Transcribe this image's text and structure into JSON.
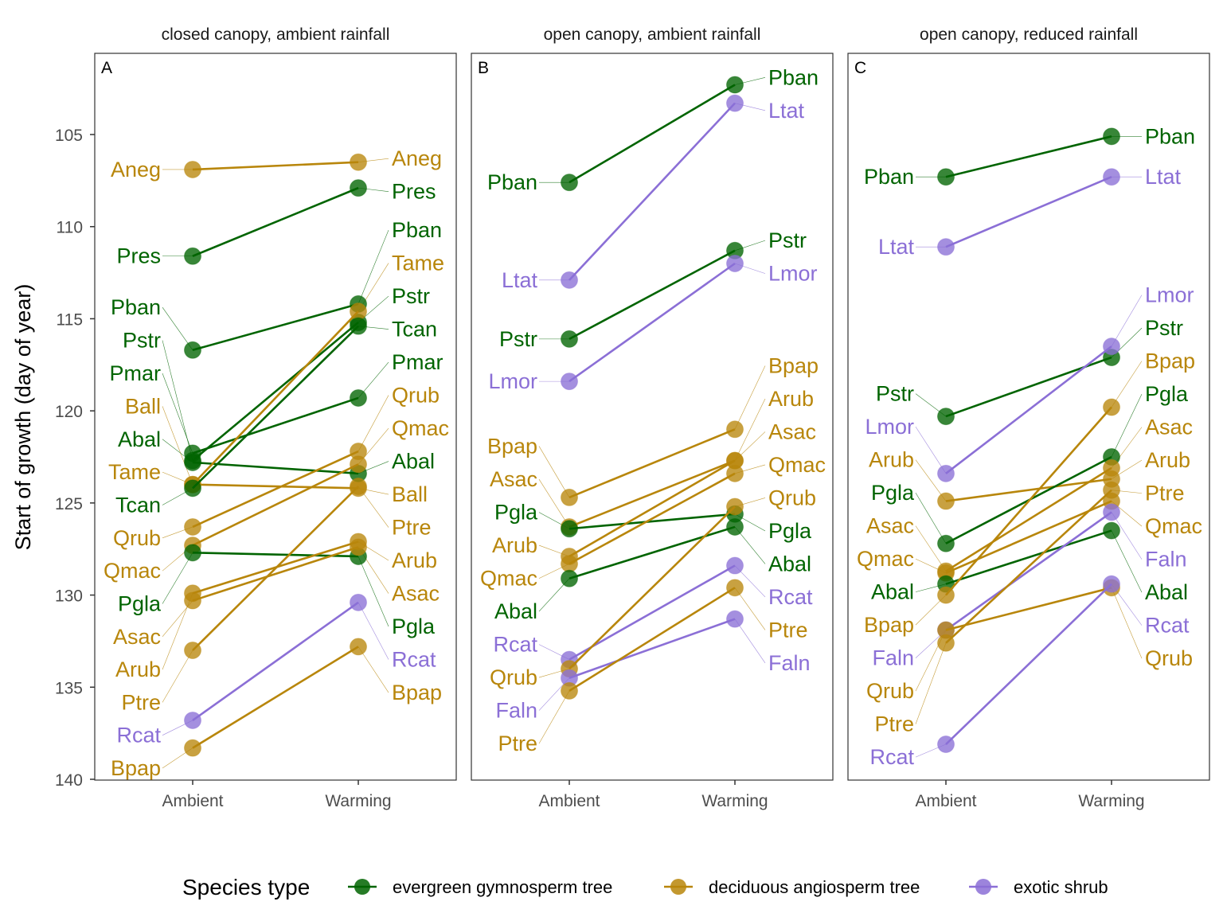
{
  "chart_data": {
    "type": "line",
    "ylabel": "Start of growth (day of year)",
    "y_reversed": true,
    "ylim": [
      140,
      101.5
    ],
    "yticks": [
      105,
      110,
      115,
      120,
      125,
      130,
      135,
      140
    ],
    "categories": [
      "Ambient",
      "Warming"
    ],
    "grid": false,
    "legend": {
      "title": "Species type",
      "placement": "bottom",
      "entries": [
        {
          "key": "evergreen",
          "label": "evergreen gymnosperm tree",
          "color": "#006400"
        },
        {
          "key": "deciduous",
          "label": "deciduous angiosperm tree",
          "color": "#B8860B"
        },
        {
          "key": "exotic",
          "label": "exotic shrub",
          "color": "#8B6FD6"
        }
      ]
    },
    "panels": [
      {
        "tag": "A",
        "title": "closed canopy, ambient rainfall",
        "series": [
          {
            "name": "Aneg",
            "type": "deciduous",
            "values": [
              106.9,
              106.5
            ]
          },
          {
            "name": "Pres",
            "type": "evergreen",
            "values": [
              111.6,
              107.9
            ]
          },
          {
            "name": "Pban",
            "type": "evergreen",
            "values": [
              116.7,
              114.2
            ]
          },
          {
            "name": "Pstr",
            "type": "evergreen",
            "values": [
              122.7,
              115.2
            ]
          },
          {
            "name": "Pmar",
            "type": "evergreen",
            "values": [
              122.3,
              119.3
            ]
          },
          {
            "name": "Ball",
            "type": "deciduous",
            "values": [
              124.0,
              124.2
            ]
          },
          {
            "name": "Abal",
            "type": "evergreen",
            "values": [
              122.8,
              123.4
            ]
          },
          {
            "name": "Tame",
            "type": "deciduous",
            "values": [
              124.0,
              114.6
            ]
          },
          {
            "name": "Tcan",
            "type": "evergreen",
            "values": [
              124.2,
              115.4
            ]
          },
          {
            "name": "Qrub",
            "type": "deciduous",
            "values": [
              126.3,
              122.2
            ]
          },
          {
            "name": "Qmac",
            "type": "deciduous",
            "values": [
              127.3,
              122.9
            ]
          },
          {
            "name": "Pgla",
            "type": "evergreen",
            "values": [
              127.7,
              127.9
            ]
          },
          {
            "name": "Asac",
            "type": "deciduous",
            "values": [
              130.3,
              127.4
            ]
          },
          {
            "name": "Arub",
            "type": "deciduous",
            "values": [
              129.9,
              127.1
            ]
          },
          {
            "name": "Ptre",
            "type": "deciduous",
            "values": [
              133.0,
              124.1
            ]
          },
          {
            "name": "Rcat",
            "type": "exotic",
            "values": [
              136.8,
              130.4
            ]
          },
          {
            "name": "Bpap",
            "type": "deciduous",
            "values": [
              138.3,
              132.8
            ]
          }
        ],
        "left_label_order": [
          "Aneg",
          "Pres",
          "Pban",
          "Pstr",
          "Pmar",
          "Ball",
          "Abal",
          "Tame",
          "Tcan",
          "Qrub",
          "Qmac",
          "Pgla",
          "Asac",
          "Arub",
          "Ptre",
          "Rcat",
          "Bpap"
        ],
        "right_label_order": [
          "Aneg",
          "Pres",
          "Pban",
          "Tame",
          "Pstr",
          "Tcan",
          "Pmar",
          "Qrub",
          "Qmac",
          "Abal",
          "Ball",
          "Ptre",
          "Arub",
          "Asac",
          "Pgla",
          "Rcat",
          "Bpap"
        ]
      },
      {
        "tag": "B",
        "title": "open canopy, ambient rainfall",
        "series": [
          {
            "name": "Pban",
            "type": "evergreen",
            "values": [
              107.6,
              102.3
            ]
          },
          {
            "name": "Ltat",
            "type": "exotic",
            "values": [
              112.9,
              103.3
            ]
          },
          {
            "name": "Pstr",
            "type": "evergreen",
            "values": [
              116.1,
              111.3
            ]
          },
          {
            "name": "Lmor",
            "type": "exotic",
            "values": [
              118.4,
              112.0
            ]
          },
          {
            "name": "Bpap",
            "type": "deciduous",
            "values": [
              124.7,
              121.0
            ]
          },
          {
            "name": "Asac",
            "type": "deciduous",
            "values": [
              126.3,
              122.7
            ]
          },
          {
            "name": "Pgla",
            "type": "evergreen",
            "values": [
              126.4,
              125.6
            ]
          },
          {
            "name": "Arub",
            "type": "deciduous",
            "values": [
              127.9,
              122.7
            ]
          },
          {
            "name": "Qmac",
            "type": "deciduous",
            "values": [
              128.3,
              123.4
            ]
          },
          {
            "name": "Abal",
            "type": "evergreen",
            "values": [
              129.1,
              126.3
            ]
          },
          {
            "name": "Rcat",
            "type": "exotic",
            "values": [
              133.5,
              128.4
            ]
          },
          {
            "name": "Qrub",
            "type": "deciduous",
            "values": [
              134.0,
              125.2
            ]
          },
          {
            "name": "Faln",
            "type": "exotic",
            "values": [
              134.5,
              131.3
            ]
          },
          {
            "name": "Ptre",
            "type": "deciduous",
            "values": [
              135.2,
              129.6
            ]
          }
        ],
        "left_label_order": [
          "Pban",
          "Ltat",
          "Pstr",
          "Lmor",
          "Bpap",
          "Asac",
          "Pgla",
          "Arub",
          "Qmac",
          "Abal",
          "Rcat",
          "Qrub",
          "Faln",
          "Ptre"
        ],
        "right_label_order": [
          "Pban",
          "Ltat",
          "Pstr",
          "Lmor",
          "Bpap",
          "Arub",
          "Asac",
          "Qmac",
          "Qrub",
          "Pgla",
          "Abal",
          "Rcat",
          "Ptre",
          "Faln"
        ]
      },
      {
        "tag": "C",
        "title": "open canopy, reduced rainfall",
        "series": [
          {
            "name": "Pban",
            "type": "evergreen",
            "values": [
              107.3,
              105.1
            ]
          },
          {
            "name": "Ltat",
            "type": "exotic",
            "values": [
              111.1,
              107.3
            ]
          },
          {
            "name": "Pstr",
            "type": "evergreen",
            "values": [
              120.3,
              117.1
            ]
          },
          {
            "name": "Lmor",
            "type": "exotic",
            "values": [
              123.4,
              116.5
            ]
          },
          {
            "name": "Arub",
            "type": "deciduous",
            "values": [
              124.9,
              123.7
            ]
          },
          {
            "name": "Pgla",
            "type": "evergreen",
            "values": [
              127.2,
              122.5
            ]
          },
          {
            "name": "Asac",
            "type": "deciduous",
            "values": [
              128.7,
              123.1
            ]
          },
          {
            "name": "Qmac",
            "type": "deciduous",
            "values": [
              128.8,
              124.9
            ]
          },
          {
            "name": "Abal",
            "type": "evergreen",
            "values": [
              129.4,
              126.5
            ]
          },
          {
            "name": "Bpap",
            "type": "deciduous",
            "values": [
              130.0,
              119.8
            ]
          },
          {
            "name": "Faln",
            "type": "exotic",
            "values": [
              131.9,
              125.5
            ]
          },
          {
            "name": "Qrub",
            "type": "deciduous",
            "values": [
              131.9,
              129.6
            ]
          },
          {
            "name": "Ptre",
            "type": "deciduous",
            "values": [
              132.6,
              124.3
            ]
          },
          {
            "name": "Rcat",
            "type": "exotic",
            "values": [
              138.1,
              129.4
            ]
          }
        ],
        "left_label_order": [
          "Pban",
          "Ltat",
          "Pstr",
          "Lmor",
          "Arub",
          "Pgla",
          "Asac",
          "Qmac",
          "Abal",
          "Bpap",
          "Faln",
          "Qrub",
          "Ptre",
          "Rcat"
        ],
        "right_label_order": [
          "Pban",
          "Ltat",
          "Lmor",
          "Pstr",
          "Bpap",
          "Pgla",
          "Asac",
          "Arub",
          "Ptre",
          "Qmac",
          "Faln",
          "Abal",
          "Rcat",
          "Qrub"
        ]
      }
    ]
  }
}
